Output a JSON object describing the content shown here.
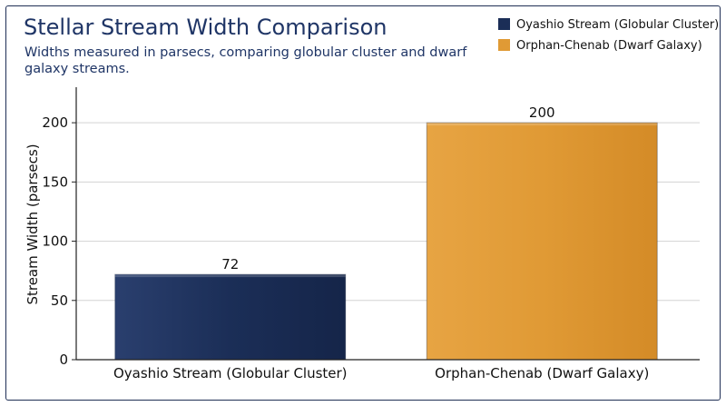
{
  "chart_data": {
    "type": "bar",
    "title": "Stellar Stream Width Comparison",
    "subtitle_lines": [
      "Widths measured in parsecs, comparing globular cluster and dwarf",
      "galaxy streams."
    ],
    "categories": [
      "Oyashio Stream (Globular Cluster)",
      "Orphan-Chenab (Dwarf Galaxy)"
    ],
    "values": [
      72,
      200
    ],
    "value_labels": [
      "72",
      "200"
    ],
    "colors": [
      "#1b2e57",
      "#e09a35"
    ],
    "xlabel": "",
    "ylabel": "Stream Width (parsecs)",
    "ylim": [
      0,
      230
    ],
    "yticks": [
      0,
      50,
      100,
      150,
      200
    ],
    "ytick_labels": [
      "0",
      "50",
      "100",
      "150",
      "200"
    ],
    "grid": true,
    "legend": {
      "placement": "top-right",
      "entries": [
        "Oyashio Stream (Globular Cluster)",
        "Orphan-Chenab (Dwarf Galaxy)"
      ]
    }
  }
}
